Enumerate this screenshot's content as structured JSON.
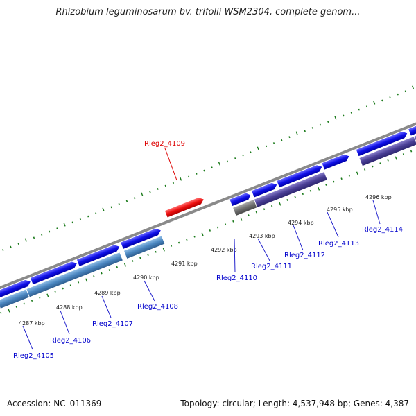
{
  "title": "Rhizobium leguminosarum bv. trifolii WSM2304, complete genom...",
  "footer": {
    "accession": "Accession: NC_011369",
    "stats": "Topology: circular; Length: 4,537,948 bp; Genes: 4,387"
  },
  "kbp_ticks": [
    "4287 kbp",
    "4288 kbp",
    "4289 kbp",
    "4290 kbp",
    "4291 kbp",
    "4292 kbp",
    "4293 kbp",
    "4294 kbp",
    "4295 kbp",
    "4296 kbp"
  ],
  "gene_labels": [
    {
      "name": "Rleg2_4105",
      "color": "#0000cc"
    },
    {
      "name": "Rleg2_4106",
      "color": "#0000cc"
    },
    {
      "name": "Rleg2_4107",
      "color": "#0000cc"
    },
    {
      "name": "Rleg2_4108",
      "color": "#0000cc"
    },
    {
      "name": "Rleg2_4109",
      "color": "#dd0000"
    },
    {
      "name": "Rleg2_4110",
      "color": "#0000cc"
    },
    {
      "name": "Rleg2_4111",
      "color": "#0000cc"
    },
    {
      "name": "Rleg2_4112",
      "color": "#0000cc"
    },
    {
      "name": "Rleg2_4113",
      "color": "#0000cc"
    },
    {
      "name": "Rleg2_4114",
      "color": "#0000cc"
    }
  ],
  "colors": {
    "backbone": "#8a8a8a",
    "gene_forward": "#1010e8",
    "gene_highlight": "#ee1111",
    "cds_light": "#4a86c0",
    "cds_purple": "#4a3f96",
    "gene_gray": "#707070",
    "tick_green": "#1a7a1a"
  }
}
